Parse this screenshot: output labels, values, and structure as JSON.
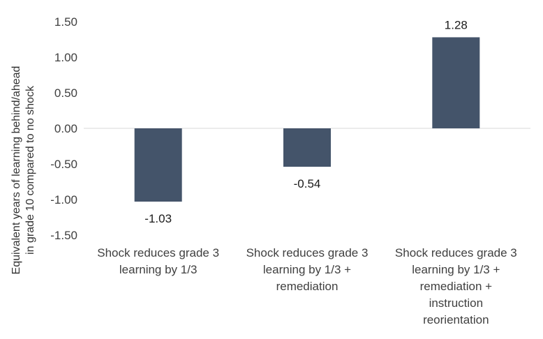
{
  "chart_data": {
    "type": "bar",
    "title": "",
    "xlabel": "",
    "ylabel_lines": [
      "Equivalent years of learning behind/ahead",
      "in grade 10 compared to no shock"
    ],
    "categories": [
      [
        "Shock reduces grade 3",
        "learning by 1/3"
      ],
      [
        "Shock reduces grade 3",
        "learning by 1/3 +",
        "remediation"
      ],
      [
        "Shock reduces grade 3",
        "learning by 1/3 +",
        "remediation +",
        "instruction",
        "reorientation"
      ]
    ],
    "values": [
      -1.03,
      -0.54,
      1.28
    ],
    "data_labels": [
      "-1.03",
      "-0.54",
      "1.28"
    ],
    "ylim": [
      -1.5,
      1.5
    ],
    "yticks": [
      1.5,
      1.0,
      0.5,
      0.0,
      -0.5,
      -1.0,
      -1.5
    ],
    "ytick_labels": [
      "1.50",
      "1.00",
      "0.50",
      "0.00",
      "-0.50",
      "-1.00",
      "-1.50"
    ],
    "grid": false,
    "legend": "none",
    "bar_color": "#44546a",
    "zero_line_color": "#d9d9d9"
  }
}
